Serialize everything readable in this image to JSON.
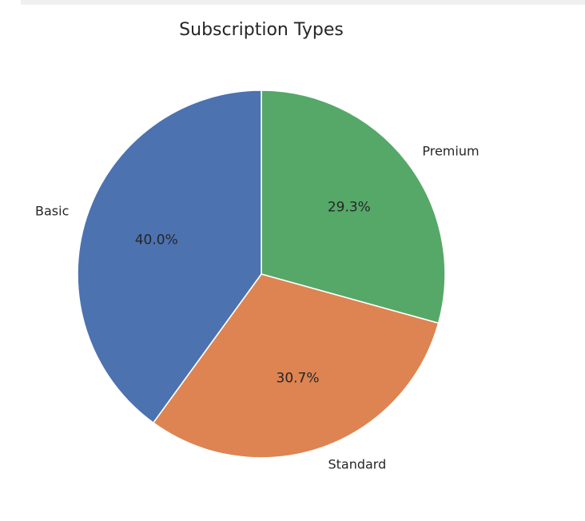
{
  "chart_data": {
    "type": "pie",
    "title": "Subscription Types",
    "slices": [
      {
        "label": "Premium",
        "value": 29.3,
        "pct_label": "29.3%",
        "color": "#55a868"
      },
      {
        "label": "Standard",
        "value": 30.7,
        "pct_label": "30.7%",
        "color": "#dd8452"
      },
      {
        "label": "Basic",
        "value": 40.0,
        "pct_label": "40.0%",
        "color": "#4c72b0"
      }
    ],
    "start_angle": "top (12 o'clock)",
    "direction": "clockwise",
    "slice_edge_color": "#ffffff"
  }
}
